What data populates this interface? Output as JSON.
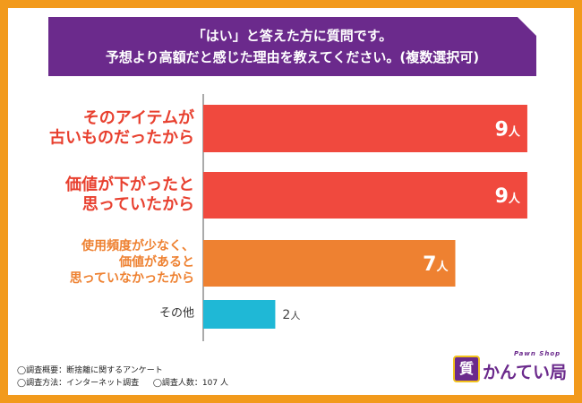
{
  "header": {
    "line1": "「はい」と答えた方に質問です。",
    "line2": "予想より高額だと感じた理由を教えてください。(複数選択可)"
  },
  "chart_data": {
    "type": "bar",
    "orientation": "horizontal",
    "categories": [
      [
        "そのアイテムが",
        "古いものだったから"
      ],
      [
        "価値が下がったと",
        "思っていたから"
      ],
      [
        "使用頻度が少なく、",
        "価値があると",
        "思っていなかったから"
      ],
      [
        "その他"
      ]
    ],
    "values": [
      9,
      9,
      7,
      2
    ],
    "value_unit": "人",
    "colors": [
      "#f0493e",
      "#f0493e",
      "#ee8131",
      "#1fb8d6"
    ],
    "label_colors": [
      "#e8402f",
      "#e8402f",
      "#ee8131",
      "#333333"
    ],
    "xlim": [
      0,
      9.3
    ]
  },
  "footnotes": {
    "survey_overview": "◯調査概要：断捨離に関するアンケート",
    "survey_method": "◯調査方法：インターネット調査",
    "survey_count": "◯調査人数：107 人"
  },
  "logo": {
    "badge": "質",
    "tagline": "Pawn Shop",
    "name": "かんてい局"
  }
}
